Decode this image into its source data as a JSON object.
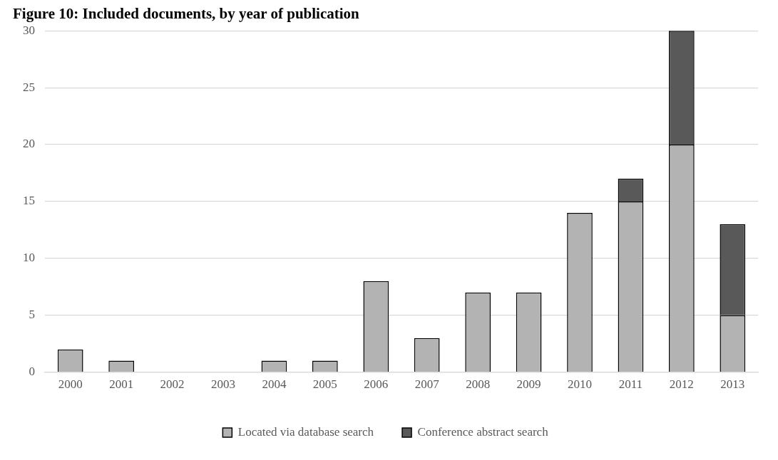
{
  "chart_data": {
    "type": "bar",
    "title": "Figure 10: Included documents, by year of publication",
    "categories": [
      "2000",
      "2001",
      "2002",
      "2003",
      "2004",
      "2005",
      "2006",
      "2007",
      "2008",
      "2009",
      "2010",
      "2011",
      "2012",
      "2013"
    ],
    "series": [
      {
        "name": "Located via database search",
        "color": "#b3b3b3",
        "values": [
          2,
          1,
          0,
          0,
          1,
          1,
          8,
          3,
          7,
          7,
          14,
          15,
          20,
          5
        ]
      },
      {
        "name": "Conference abstract search",
        "color": "#595959",
        "values": [
          null,
          null,
          null,
          null,
          null,
          null,
          null,
          null,
          null,
          null,
          null,
          2,
          10,
          8
        ]
      }
    ],
    "stacked": true,
    "ylim": [
      0,
      30
    ],
    "yticks": [
      0,
      5,
      10,
      15,
      20,
      25,
      30
    ],
    "grid": "y",
    "legend": "bottom"
  }
}
